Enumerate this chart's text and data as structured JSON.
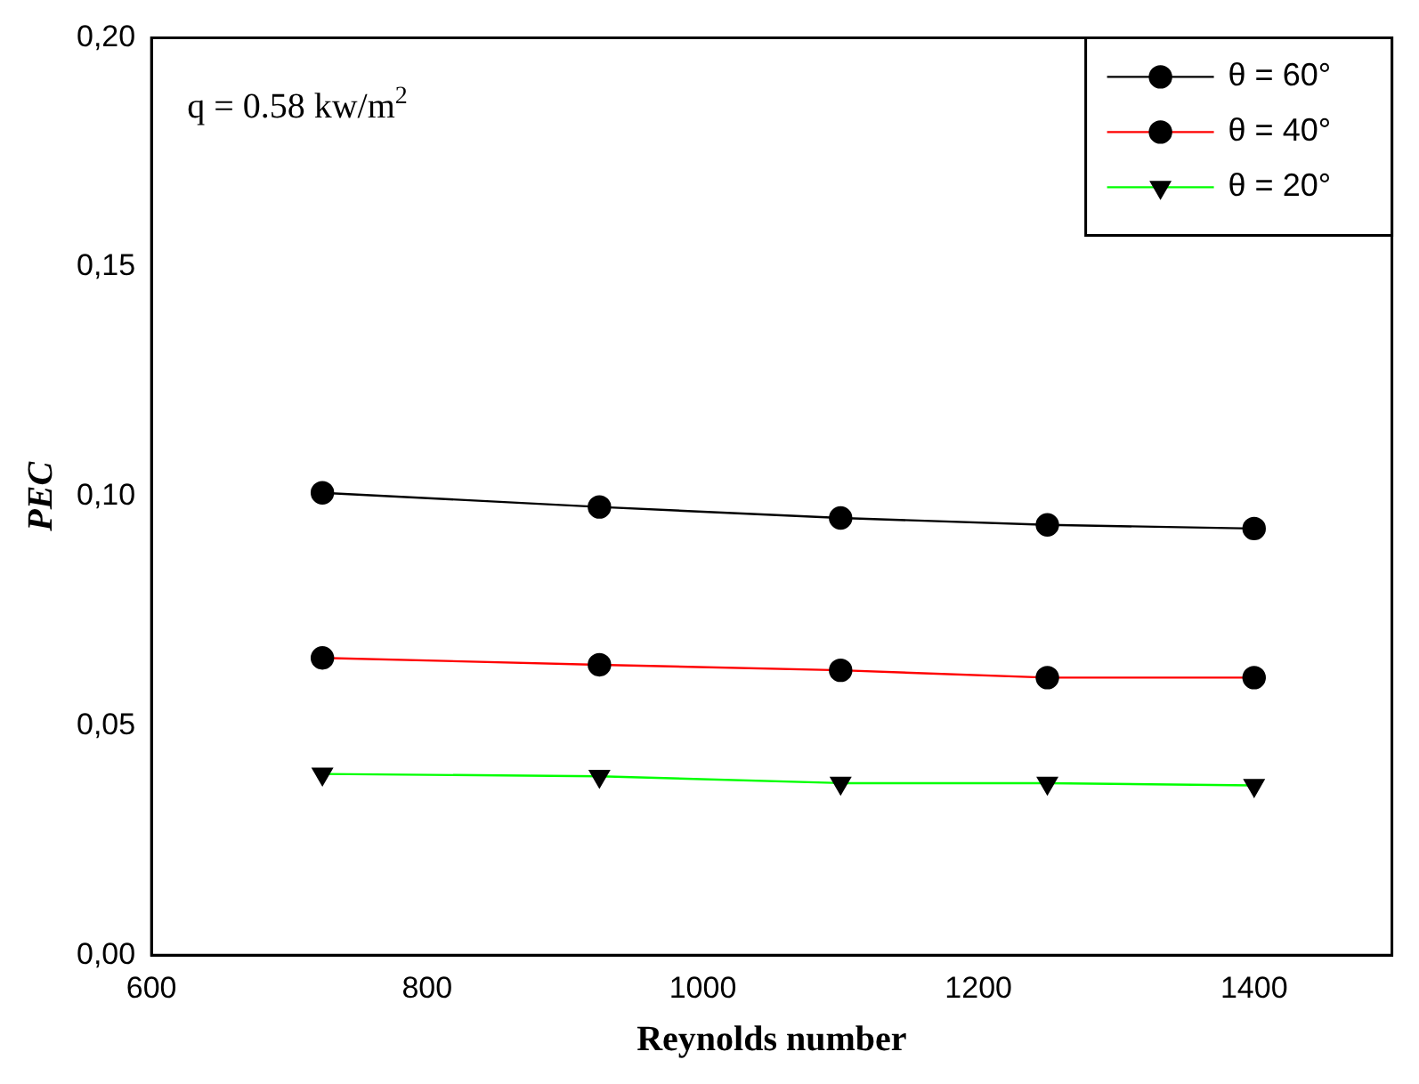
{
  "chart_data": {
    "type": "line",
    "xlabel": "Reynolds number",
    "ylabel": "PEC",
    "annotations": [
      "q = 0.58 kw/m$^{2}$"
    ],
    "xlim": [
      600,
      1500
    ],
    "xticks": [
      600,
      800,
      1000,
      1200,
      1400
    ],
    "ylim": [
      0,
      0.2
    ],
    "yticks": [
      {
        "value": 0,
        "label": "0,00"
      },
      {
        "value": 0.05,
        "label": "0,05"
      },
      {
        "value": 0.1,
        "label": "0,10"
      },
      {
        "value": 0.15,
        "label": "0,15"
      },
      {
        "value": 0.2,
        "label": "0,20"
      }
    ],
    "grid": false,
    "legend": "top right",
    "line_style": "solid",
    "series": [
      {
        "name": "θ = 60°",
        "color": "#000000",
        "marker": "circle",
        "x": [
          724,
          925,
          1100,
          1250,
          1400
        ],
        "values": [
          0.1008,
          0.0977,
          0.0953,
          0.0938,
          0.093
        ]
      },
      {
        "name": "θ = 40°",
        "color": "#ff0000",
        "marker": "circle",
        "x": [
          724,
          925,
          1100,
          1250,
          1400
        ],
        "values": [
          0.0648,
          0.0633,
          0.0621,
          0.0605,
          0.0605
        ]
      },
      {
        "name": "θ = 20°",
        "color": "#00ff00",
        "marker": "triangle",
        "x": [
          724,
          925,
          1100,
          1250,
          1400
        ],
        "values": [
          0.0395,
          0.039,
          0.0375,
          0.0375,
          0.037
        ]
      }
    ]
  }
}
